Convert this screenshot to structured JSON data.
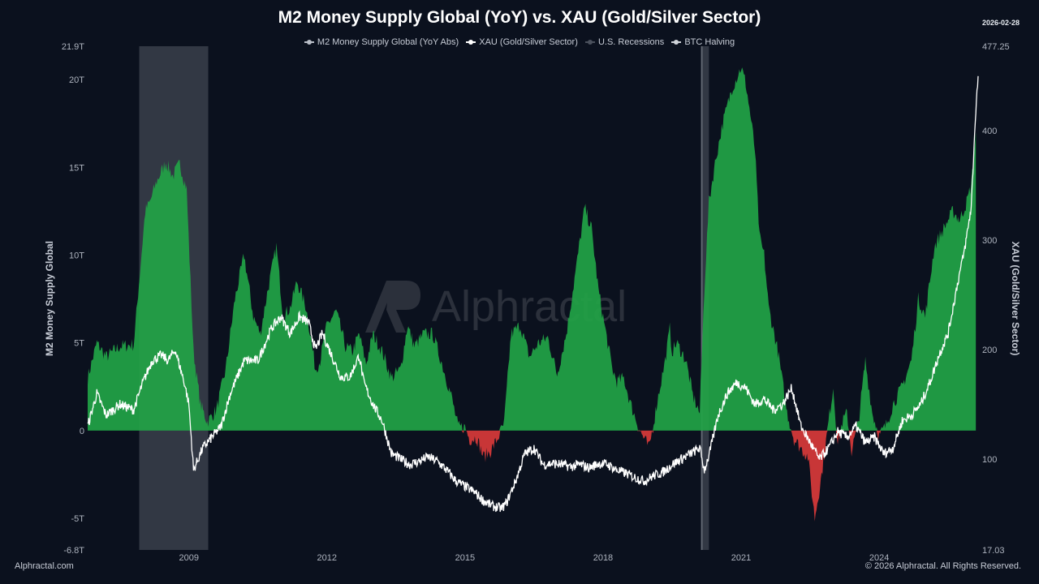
{
  "header": {
    "title": "M2 Money Supply Global (YoY) vs. XAU (Gold/Silver Sector)",
    "date": "2026-02-28"
  },
  "legend": [
    {
      "label": "M2 Money Supply Global (YoY Abs)",
      "color": "#b9bec8"
    },
    {
      "label": "XAU (Gold/Silver Sector)",
      "color": "#ffffff"
    },
    {
      "label": "U.S. Recessions",
      "color": "#4a505c"
    },
    {
      "label": "BTC Halving",
      "color": "#d0d4da"
    }
  ],
  "watermark": "Alphractal",
  "footer": {
    "left": "Alphractal.com",
    "right": "© 2026 Alphractal. All Rights Reserved."
  },
  "colors": {
    "positive_fill": "#22a447",
    "negative_fill": "#d93a3a",
    "xau_line": "#ffffff",
    "recession": "#3a3f4b"
  },
  "chart_data": {
    "type": "area",
    "x_range": [
      2006.8,
      2026.15
    ],
    "left_axis": {
      "label": "M2 Money Supply Global",
      "ylim": [
        -6.8,
        21.9
      ],
      "ticks": [
        {
          "v": 21.9,
          "label": "21.9T"
        },
        {
          "v": 20,
          "label": "20T"
        },
        {
          "v": 15,
          "label": "15T"
        },
        {
          "v": 10,
          "label": "10T"
        },
        {
          "v": 5,
          "label": "5T"
        },
        {
          "v": 0,
          "label": "0"
        },
        {
          "v": -5,
          "label": "-5T"
        },
        {
          "v": -6.8,
          "label": "-6.8T"
        }
      ]
    },
    "right_axis": {
      "label": "XAU (Gold/Silver Sector)",
      "ylim": [
        17.03,
        477.25
      ],
      "ticks": [
        {
          "v": 477.25,
          "label": "477.25"
        },
        {
          "v": 400,
          "label": "400"
        },
        {
          "v": 300,
          "label": "300"
        },
        {
          "v": 200,
          "label": "200"
        },
        {
          "v": 100,
          "label": "100"
        },
        {
          "v": 17.03,
          "label": "17.03"
        }
      ]
    },
    "x_ticks": [
      {
        "v": 2009,
        "label": "2009"
      },
      {
        "v": 2012,
        "label": "2012"
      },
      {
        "v": 2015,
        "label": "2015"
      },
      {
        "v": 2018,
        "label": "2018"
      },
      {
        "v": 2021,
        "label": "2021"
      },
      {
        "v": 2024,
        "label": "2024"
      }
    ],
    "recessions": [
      [
        2007.92,
        2009.42
      ],
      [
        2020.12,
        2020.3
      ]
    ],
    "series": [
      {
        "name": "M2 Money Supply Global (YoY Abs)",
        "axis": "left",
        "x": [
          2006.8,
          2007.0,
          2007.2,
          2007.5,
          2007.8,
          2008.05,
          2008.15,
          2008.3,
          2008.5,
          2008.65,
          2008.8,
          2008.95,
          2009.1,
          2009.25,
          2009.4,
          2009.6,
          2009.8,
          2010.0,
          2010.2,
          2010.4,
          2010.55,
          2010.7,
          2010.9,
          2011.05,
          2011.2,
          2011.35,
          2011.55,
          2011.75,
          2011.85,
          2012.0,
          2012.2,
          2012.4,
          2012.55,
          2012.7,
          2012.85,
          2013.0,
          2013.2,
          2013.4,
          2013.6,
          2013.75,
          2013.9,
          2014.1,
          2014.3,
          2014.5,
          2014.7,
          2014.85,
          2015.0,
          2015.1,
          2015.25,
          2015.4,
          2015.55,
          2015.7,
          2015.85,
          2016.0,
          2016.2,
          2016.4,
          2016.6,
          2016.8,
          2017.0,
          2017.2,
          2017.4,
          2017.6,
          2017.75,
          2017.9,
          2018.1,
          2018.2,
          2018.3,
          2018.45,
          2018.6,
          2018.8,
          2019.0,
          2019.2,
          2019.35,
          2019.45,
          2019.5,
          2019.6,
          2019.8,
          2019.95,
          2020.1,
          2020.2,
          2020.3,
          2020.45,
          2020.6,
          2020.8,
          2021.0,
          2021.1,
          2021.2,
          2021.3,
          2021.4,
          2021.5,
          2021.6,
          2021.8,
          2022.0,
          2022.15,
          2022.3,
          2022.45,
          2022.6,
          2022.75,
          2022.9,
          2023.0,
          2023.1,
          2023.2,
          2023.3,
          2023.4,
          2023.55,
          2023.7,
          2023.85,
          2024.0,
          2024.15,
          2024.3,
          2024.5,
          2024.7,
          2024.85,
          2025.0,
          2025.2,
          2025.4,
          2025.6,
          2025.75,
          2025.9,
          2026.0,
          2026.1
        ],
        "y": [
          3.0,
          5.0,
          4.2,
          4.8,
          4.9,
          12.5,
          13.0,
          14.2,
          15.3,
          14.5,
          15.2,
          13.8,
          4.5,
          1.5,
          0.5,
          1.2,
          3.5,
          7.5,
          10.0,
          6.5,
          5.5,
          7.8,
          10.5,
          6.5,
          7.0,
          8.5,
          7.0,
          3.5,
          4.0,
          6.0,
          6.8,
          4.8,
          4.5,
          5.5,
          3.8,
          5.5,
          4.5,
          3.0,
          3.5,
          6.0,
          4.8,
          5.5,
          5.5,
          3.8,
          2.0,
          0.2,
          0.2,
          -0.5,
          -0.4,
          -1.5,
          -1.2,
          -0.5,
          0.4,
          5.5,
          6.0,
          4.2,
          5.0,
          5.3,
          3.2,
          5.5,
          9.0,
          12.7,
          11.5,
          8.0,
          5.0,
          3.5,
          2.8,
          3.0,
          1.5,
          0.0,
          -1.0,
          2.0,
          4.0,
          5.8,
          4.5,
          5.0,
          4.0,
          2.0,
          1.0,
          8.0,
          13.0,
          15.5,
          17.5,
          19.5,
          20.7,
          19.8,
          18.0,
          16.0,
          11.0,
          10.0,
          7.0,
          4.5,
          1.0,
          -0.5,
          -1.0,
          -1.5,
          -5.0,
          -2.5,
          0.5,
          2.5,
          -0.8,
          0.5,
          1.0,
          -1.2,
          0.5,
          4.0,
          1.0,
          -0.3,
          0.3,
          1.5,
          2.5,
          4.0,
          7.5,
          6.5,
          10.5,
          11.5,
          12.5,
          12.0,
          13.0,
          14.0,
          17.0
        ]
      },
      {
        "name": "XAU (Gold/Silver Sector)",
        "axis": "right",
        "x": [
          2006.8,
          2007.0,
          2007.2,
          2007.5,
          2007.8,
          2008.0,
          2008.2,
          2008.4,
          2008.55,
          2008.7,
          2008.8,
          2008.9,
          2009.0,
          2009.1,
          2009.3,
          2009.5,
          2009.7,
          2009.9,
          2010.2,
          2010.5,
          2010.8,
          2011.0,
          2011.2,
          2011.4,
          2011.6,
          2011.75,
          2011.9,
          2012.1,
          2012.3,
          2012.5,
          2012.7,
          2012.8,
          2013.0,
          2013.2,
          2013.3,
          2013.4,
          2013.6,
          2013.8,
          2014.0,
          2014.2,
          2014.4,
          2014.6,
          2014.8,
          2015.0,
          2015.2,
          2015.4,
          2015.6,
          2015.8,
          2015.9,
          2016.1,
          2016.3,
          2016.5,
          2016.7,
          2016.9,
          2017.1,
          2017.3,
          2017.5,
          2017.7,
          2017.9,
          2018.1,
          2018.3,
          2018.5,
          2018.7,
          2018.9,
          2019.1,
          2019.3,
          2019.5,
          2019.7,
          2019.9,
          2020.1,
          2020.2,
          2020.3,
          2020.5,
          2020.7,
          2020.9,
          2021.1,
          2021.3,
          2021.5,
          2021.7,
          2021.9,
          2022.1,
          2022.3,
          2022.5,
          2022.7,
          2022.9,
          2023.1,
          2023.3,
          2023.5,
          2023.7,
          2023.9,
          2024.1,
          2024.3,
          2024.5,
          2024.7,
          2024.9,
          2025.1,
          2025.3,
          2025.5,
          2025.7,
          2025.85,
          2026.0,
          2026.1,
          2026.15
        ],
        "y": [
          130,
          160,
          140,
          150,
          145,
          170,
          190,
          195,
          190,
          200,
          185,
          170,
          150,
          90,
          110,
          120,
          130,
          160,
          190,
          190,
          220,
          230,
          215,
          230,
          225,
          200,
          215,
          195,
          175,
          175,
          195,
          170,
          150,
          135,
          120,
          105,
          100,
          95,
          98,
          102,
          98,
          90,
          80,
          75,
          70,
          62,
          57,
          55,
          60,
          80,
          105,
          110,
          95,
          96,
          95,
          93,
          95,
          92,
          96,
          95,
          90,
          87,
          83,
          80,
          85,
          88,
          95,
          100,
          105,
          110,
          90,
          103,
          140,
          160,
          170,
          165,
          150,
          155,
          145,
          150,
          165,
          130,
          115,
          100,
          110,
          125,
          120,
          130,
          115,
          120,
          105,
          110,
          135,
          140,
          150,
          170,
          195,
          215,
          260,
          290,
          330,
          420,
          450
        ]
      }
    ],
    "btc_halving": [
      2020.15
    ]
  }
}
